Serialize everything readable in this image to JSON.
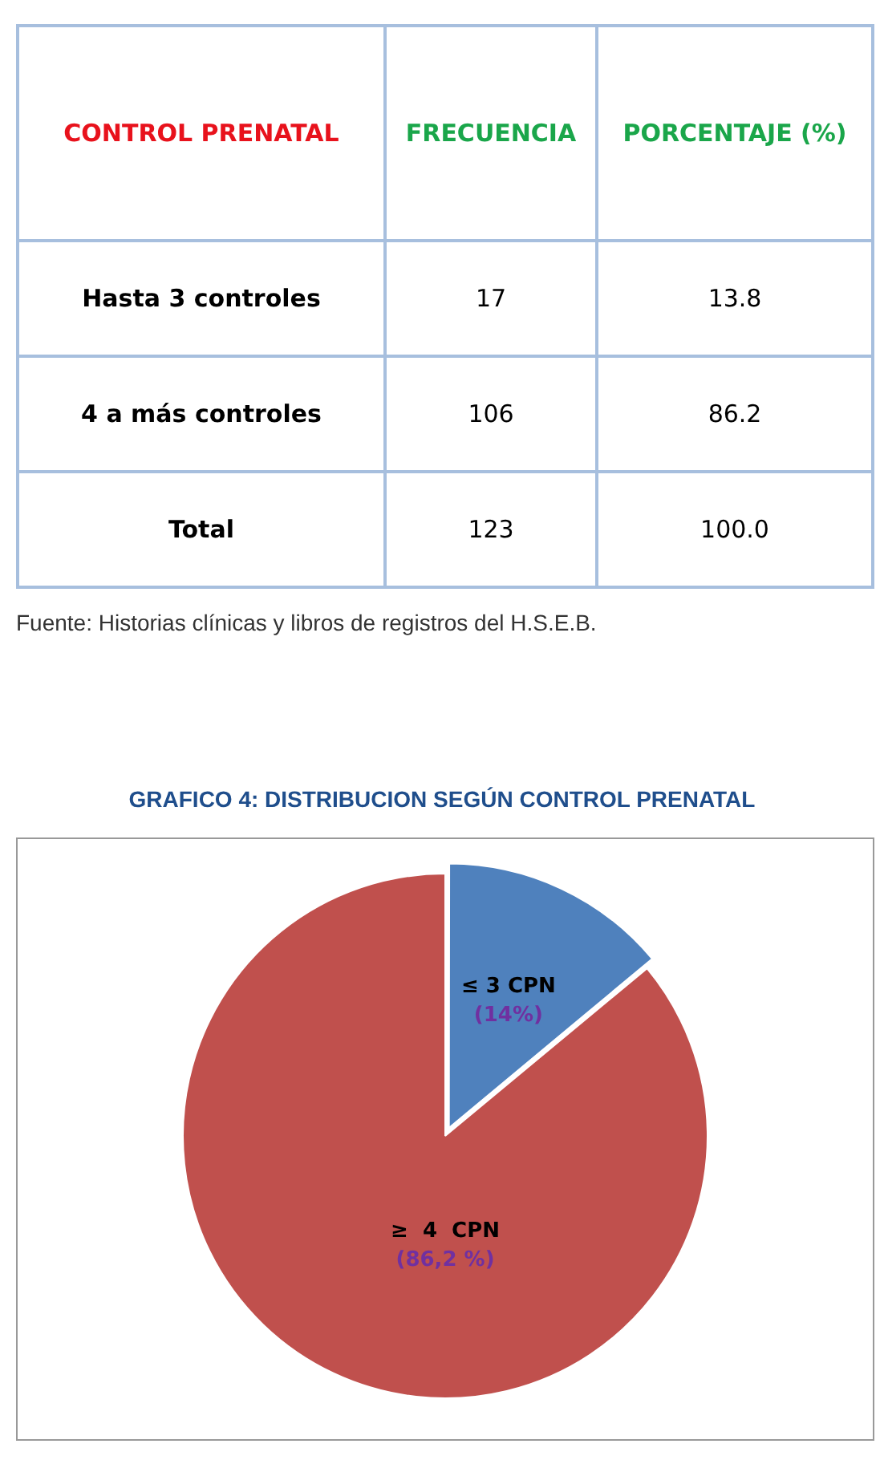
{
  "chart_data": [
    {
      "type": "other",
      "xlabel": "CONTROL PRENATAL",
      "categories": [
        "Hasta 3 controles",
        "4 a más controles",
        "Total"
      ],
      "series": [
        {
          "name": "FRECUENCIA",
          "values": [
            17,
            106,
            123
          ]
        },
        {
          "name": "PORCENTAJE (%)",
          "values": [
            13.8,
            86.2,
            100.0
          ],
          "value_labels": [
            "13.8",
            "86.2",
            "100.0"
          ]
        }
      ],
      "data_labels": true,
      "annotations": [
        "Fuente: Historias clínicas  y libros de registros del H.S.E.B."
      ]
    },
    {
      "type": "pie",
      "title": "GRAFICO 4:  DISTRIBUCION SEGÚN CONTROL PRENATAL",
      "categories": [
        "≤ 3 CPN",
        "≥  4  CPN"
      ],
      "values": [
        14,
        86.2
      ],
      "value_labels": [
        "(14%)",
        "(86,2 %)"
      ],
      "colors": [
        "#4f81bd",
        "#c0504d"
      ],
      "legend": false
    }
  ]
}
